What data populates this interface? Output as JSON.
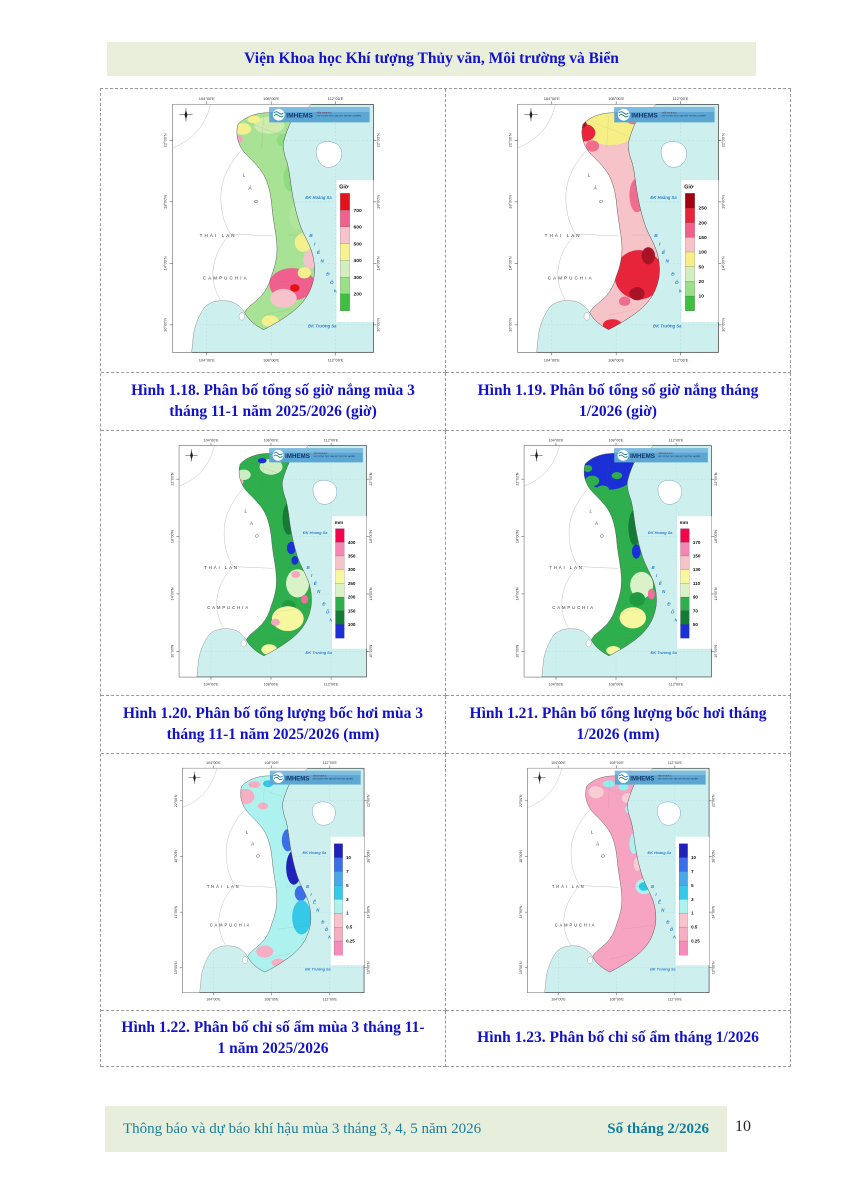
{
  "header": {
    "title": "Viện Khoa học Khí tượng Thủy văn, Môi trường và Biển"
  },
  "footer": {
    "left": "Thông báo và dự báo khí hậu mùa 3 tháng 3, 4, 5 năm 2026",
    "right": "Số tháng 2/2026",
    "page_number": "10"
  },
  "map_common": {
    "logo": {
      "name": "IMHEMS",
      "sub1": "VIỆN KHOA HỌC",
      "sub2": "KHÍ TƯỢNG THỦY VĂN, MÔI TRƯỜNG VÀ BIỂN"
    },
    "x_ticks": [
      "104°00'E",
      "108°00'E",
      "112°00'E"
    ],
    "y_ticks": [
      "22°00'N",
      "18°00'N",
      "14°00'N",
      "10°00'N"
    ],
    "labels": {
      "laos": "LÀO",
      "thailand": "THÁI LAN",
      "cambodia": "CAMPUCHIA",
      "east_sea": "BIỂN ĐÔNG",
      "paracel": "ĐK Hoàng Sa",
      "spratly": "ĐK Trường Sa"
    },
    "colors": {
      "sea": "#cdf0ef",
      "land": "#ffffff",
      "coast": "#8a8a8a",
      "grid": "#9fd8dc",
      "sea_label": "#2f7fd0"
    }
  },
  "figures": [
    {
      "id": "hinh-1-18",
      "caption": "Hình 1.18. Phân bố tổng số giờ nắng mùa 3 tháng 11-1 năm 2025/2026 (giờ)",
      "legend": {
        "title": "Giờ",
        "labels": [
          "700",
          "600",
          "500",
          "400",
          "300",
          "200"
        ],
        "band_colors": [
          "#e31219",
          "#f0628e",
          "#f6c3cc",
          "#f5f291",
          "#d4efbe",
          "#99e089",
          "#3fbf3f"
        ]
      },
      "map": {
        "base": "#a8e295",
        "patches": [
          [
            126,
            34,
            16,
            9,
            "#cdecae"
          ],
          [
            142,
            50,
            8,
            7,
            "#8fdc7f"
          ],
          [
            98,
            38,
            9,
            6,
            "#f3f08e"
          ],
          [
            93,
            49,
            5,
            4,
            "#f2a2c0"
          ],
          [
            110,
            28,
            7,
            4,
            "#f3f08e"
          ],
          [
            148,
            90,
            7,
            14,
            "#8fdc7f"
          ],
          [
            155,
            130,
            8,
            14,
            "#aee79c"
          ],
          [
            162,
            158,
            9,
            10,
            "#f3f08e"
          ],
          [
            169,
            176,
            7,
            10,
            "#f6c3cc"
          ],
          [
            150,
            202,
            24,
            17,
            "#f0608e"
          ],
          [
            141,
            217,
            14,
            10,
            "#f6c3cc"
          ],
          [
            153,
            206,
            5,
            4,
            "#e31219"
          ],
          [
            163,
            190,
            7,
            6,
            "#f3f08e"
          ],
          [
            127,
            241,
            9,
            6,
            "#f3f08e"
          ]
        ]
      }
    },
    {
      "id": "hinh-1-19",
      "caption": "Hình 1.19. Phân bố tổng số giờ nắng tháng 1/2026 (giờ)",
      "legend": {
        "title": "Giờ",
        "labels": [
          "250",
          "200",
          "150",
          "100",
          "50",
          "20",
          "10"
        ],
        "band_colors": [
          "#a00010",
          "#e8243a",
          "#f0608a",
          "#f6c3c8",
          "#f6ef86",
          "#d4efbe",
          "#99e089",
          "#3fbf3f"
        ]
      },
      "map": {
        "base": "#f6c3c8",
        "patches": [
          [
            122,
            38,
            28,
            17,
            "#f6ef86"
          ],
          [
            95,
            42,
            11,
            9,
            "#e8243a"
          ],
          [
            103,
            56,
            7,
            6,
            "#ef6d8e"
          ],
          [
            146,
            28,
            7,
            5,
            "#ef6d8e"
          ],
          [
            92,
            33,
            5,
            4,
            "#a81425"
          ],
          [
            150,
            108,
            8,
            18,
            "#ef6d8e"
          ],
          [
            158,
            142,
            9,
            12,
            "#f6c3c8"
          ],
          [
            152,
            192,
            26,
            26,
            "#e8243a"
          ],
          [
            162,
            172,
            7,
            9,
            "#a81425"
          ],
          [
            150,
            212,
            8,
            7,
            "#a81425"
          ],
          [
            137,
            220,
            6,
            5,
            "#ef6d8e"
          ],
          [
            124,
            245,
            10,
            6,
            "#e8243a"
          ]
        ]
      }
    },
    {
      "id": "hinh-1-20",
      "caption": "Hình 1.20. Phân bố tổng lượng bốc hơi mùa 3 tháng 11-1 năm 2025/2026 (mm)",
      "legend": {
        "title": "mm",
        "labels": [
          "400",
          "350",
          "300",
          "250",
          "200",
          "150",
          "100"
        ],
        "band_colors": [
          "#f2054d",
          "#f287b3",
          "#f6c3c8",
          "#f7f7a0",
          "#d9f2c8",
          "#2fae4d",
          "#157a35",
          "#1b2fd6"
        ]
      },
      "map": {
        "base": "#2fae4d",
        "patches": [
          [
            128,
            36,
            13,
            9,
            "#cdeec2"
          ],
          [
            118,
            29,
            5,
            3,
            "#1b2fd6"
          ],
          [
            97,
            45,
            8,
            6,
            "#cdeec2"
          ],
          [
            93,
            53,
            4,
            3,
            "#f3a8c0"
          ],
          [
            148,
            95,
            7,
            18,
            "#157a35"
          ],
          [
            151,
            128,
            5,
            7,
            "#1b2fd6"
          ],
          [
            155,
            142,
            4,
            5,
            "#1b2fd6"
          ],
          [
            158,
            168,
            13,
            16,
            "#d9f2c8"
          ],
          [
            156,
            158,
            5,
            4,
            "#f3a8c0"
          ],
          [
            166,
            186,
            4,
            5,
            "#f06fa0"
          ],
          [
            148,
            194,
            8,
            7,
            "#1f9a3f"
          ],
          [
            147,
            208,
            18,
            14,
            "#f7f7a0"
          ],
          [
            133,
            212,
            5,
            4,
            "#f3a8c0"
          ],
          [
            126,
            243,
            9,
            6,
            "#f7f7a0"
          ]
        ]
      }
    },
    {
      "id": "hinh-1-21",
      "caption": "Hình 1.21. Phân bố tổng lượng bốc hơi tháng 1/2026 (mm)",
      "legend": {
        "title": "mm",
        "labels": [
          "170",
          "150",
          "130",
          "110",
          "90",
          "70",
          "50"
        ],
        "band_colors": [
          "#f2054d",
          "#f287b3",
          "#f6c3c8",
          "#f7f7a0",
          "#d9f2c8",
          "#2fae4d",
          "#157a35",
          "#1b2fd6"
        ]
      },
      "map": {
        "base": "#2fae4d",
        "patches": [
          [
            120,
            40,
            30,
            22,
            "#1b2fd6"
          ],
          [
            101,
            52,
            8,
            6,
            "#2fae4d"
          ],
          [
            113,
            62,
            7,
            5,
            "#2fae4d"
          ],
          [
            129,
            46,
            6,
            4,
            "#2fae4d"
          ],
          [
            96,
            38,
            5,
            4,
            "#2fae4d"
          ],
          [
            149,
            105,
            7,
            20,
            "#157a35"
          ],
          [
            151,
            132,
            5,
            8,
            "#1b2fd6"
          ],
          [
            157,
            170,
            13,
            15,
            "#d9f2c8"
          ],
          [
            152,
            186,
            9,
            8,
            "#1f9a3f"
          ],
          [
            168,
            180,
            4,
            6,
            "#f06fa0"
          ],
          [
            147,
            207,
            15,
            12,
            "#f7f7a0"
          ],
          [
            131,
            231,
            10,
            8,
            "#2fae4d"
          ],
          [
            125,
            244,
            8,
            5,
            "#f7f7a0"
          ]
        ]
      }
    },
    {
      "id": "hinh-1-22",
      "caption": "Hình 1.22. Phân bố chỉ số ẩm mùa 3 tháng 11-1 năm 2025/2026",
      "legend": {
        "title": "",
        "labels": [
          "10",
          "7",
          "5",
          "3",
          "1",
          "0.5",
          "0.25"
        ],
        "band_colors": [
          "#2021b8",
          "#3a6fe8",
          "#49a8e8",
          "#35c8e8",
          "#aef2f0",
          "#f8c3cc",
          "#f6aec2",
          "#f78cba"
        ]
      },
      "map": {
        "base": "#aef2f0",
        "patches": [
          [
            97,
            45,
            11,
            9,
            "#f6aec2"
          ],
          [
            108,
            31,
            7,
            4,
            "#f6aec2"
          ],
          [
            118,
            56,
            6,
            4,
            "#f6aec2"
          ],
          [
            124,
            30,
            6,
            4,
            "#35c8e8"
          ],
          [
            147,
            96,
            7,
            13,
            "#3a6fe8"
          ],
          [
            154,
            128,
            9,
            20,
            "#2021b8"
          ],
          [
            162,
            158,
            7,
            9,
            "#3a6fe8"
          ],
          [
            163,
            186,
            11,
            20,
            "#35c8e8"
          ],
          [
            120,
            226,
            10,
            7,
            "#f6aec2"
          ],
          [
            136,
            239,
            8,
            5,
            "#f6aec2"
          ]
        ]
      }
    },
    {
      "id": "hinh-1-23",
      "caption": "Hình 1.23. Phân bố chỉ số ẩm tháng 1/2026",
      "legend": {
        "title": "",
        "labels": [
          "10",
          "7",
          "5",
          "3",
          "1",
          "0.5",
          "0.25"
        ],
        "band_colors": [
          "#2021b8",
          "#3a6fe8",
          "#49a8e8",
          "#35c8e8",
          "#aef2f0",
          "#f8c3cc",
          "#f6aec2",
          "#f78cba"
        ]
      },
      "map": {
        "base": "#f7a3c2",
        "patches": [
          [
            119,
            30,
            7,
            4,
            "#8ef0ee"
          ],
          [
            136,
            34,
            6,
            4,
            "#8ef0ee"
          ],
          [
            142,
            47,
            8,
            6,
            "#f8cdd4"
          ],
          [
            104,
            40,
            9,
            7,
            "#f8cdd4"
          ],
          [
            143,
            60,
            5,
            5,
            "#aef2f0"
          ],
          [
            148,
            100,
            5,
            12,
            "#aef2f0"
          ],
          [
            152,
            124,
            4,
            8,
            "#f8cdd4"
          ],
          [
            160,
            150,
            10,
            9,
            "#aef2f0"
          ],
          [
            160,
            150,
            6,
            5,
            "#29c8e8"
          ]
        ]
      }
    }
  ]
}
